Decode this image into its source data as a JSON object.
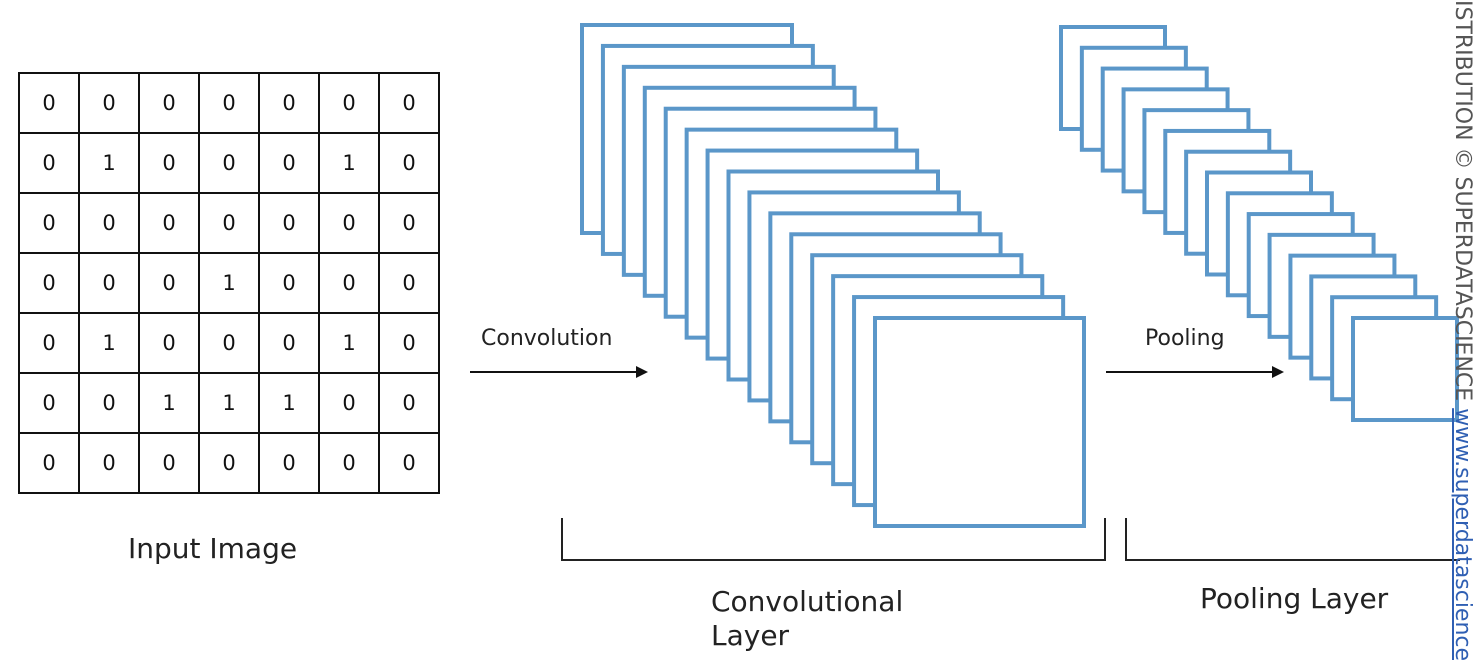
{
  "input_image": {
    "label": "Input Image",
    "grid": [
      [
        "0",
        "0",
        "0",
        "0",
        "0",
        "0",
        "0"
      ],
      [
        "0",
        "1",
        "0",
        "0",
        "0",
        "1",
        "0"
      ],
      [
        "0",
        "0",
        "0",
        "0",
        "0",
        "0",
        "0"
      ],
      [
        "0",
        "0",
        "0",
        "1",
        "0",
        "0",
        "0"
      ],
      [
        "0",
        "1",
        "0",
        "0",
        "0",
        "1",
        "0"
      ],
      [
        "0",
        "0",
        "1",
        "1",
        "1",
        "0",
        "0"
      ],
      [
        "0",
        "0",
        "0",
        "0",
        "0",
        "0",
        "0"
      ]
    ]
  },
  "arrows": {
    "convolution": "Convolution",
    "pooling": "Pooling"
  },
  "convolutional_layer": {
    "label": "Convolutional Layer",
    "feature_map_count": 15
  },
  "pooling_layer": {
    "label": "Pooling Layer",
    "feature_map_count": 15
  },
  "watermark": {
    "text": "ISTRIBUTION © SUPERDATASCIENCE",
    "link": "www.superdatascience.c"
  },
  "colors": {
    "feature_map_stroke": "#5b97c9",
    "grid_border": "#111111",
    "link": "#2f5fb3"
  }
}
